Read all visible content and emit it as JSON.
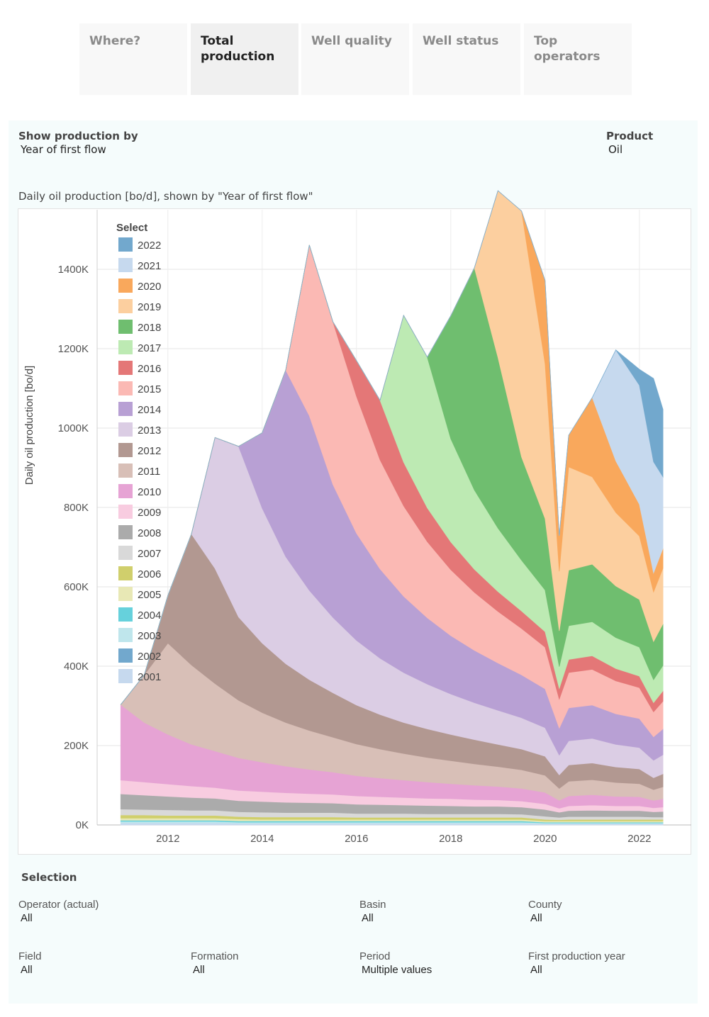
{
  "tabs": [
    {
      "label": "Where?",
      "active": false
    },
    {
      "label": "Total production",
      "active": true
    },
    {
      "label": "Well quality",
      "active": false
    },
    {
      "label": "Well status",
      "active": false
    },
    {
      "label": "Top operators",
      "active": false
    }
  ],
  "controls": {
    "show_by_label": "Show production by",
    "show_by_value": "Year of first flow",
    "product_label": "Product",
    "product_value": "Oil"
  },
  "chart_title": "Daily oil production [bo/d], shown by \"Year of first flow\"",
  "legend_title": "Select",
  "selection": {
    "title": "Selection",
    "filters": [
      {
        "label": "Operator (actual)",
        "value": "All"
      },
      {
        "label": "Basin",
        "value": "All"
      },
      {
        "label": "County",
        "value": "All"
      },
      {
        "label": "Field",
        "value": "All"
      },
      {
        "label": "Formation",
        "value": "All"
      },
      {
        "label": "Period",
        "value": "Multiple values"
      },
      {
        "label": "First production year",
        "value": "All"
      }
    ]
  },
  "chart_data": {
    "type": "area",
    "stacked": true,
    "ylabel": "Daily oil production [bo/d]",
    "xlabel": "",
    "ylim": [
      0,
      1550000
    ],
    "xlim": [
      2010.5,
      2023.1
    ],
    "y_ticks": [
      "0K",
      "200K",
      "400K",
      "600K",
      "800K",
      "1000K",
      "1200K",
      "1400K"
    ],
    "x_ticks": [
      "2012",
      "2014",
      "2016",
      "2018",
      "2020",
      "2022"
    ],
    "legend_placement": "top-left",
    "grid": true,
    "x": [
      2011.0,
      2011.5,
      2012.0,
      2012.5,
      2013.0,
      2013.5,
      2014.0,
      2014.5,
      2015.0,
      2015.5,
      2016.0,
      2016.5,
      2017.0,
      2017.5,
      2018.0,
      2018.5,
      2019.0,
      2019.5,
      2020.0,
      2020.3,
      2020.5,
      2021.0,
      2021.5,
      2022.0,
      2022.3,
      2022.5
    ],
    "series": [
      {
        "name": "2001",
        "color": "#c6d9ee",
        "values": [
          5000,
          5000,
          5000,
          5000,
          5000,
          4000,
          4000,
          4000,
          4000,
          4000,
          4000,
          4000,
          4000,
          4000,
          4000,
          4000,
          4000,
          4000,
          3000,
          3000,
          3000,
          3000,
          3000,
          3000,
          3000,
          3000
        ]
      },
      {
        "name": "2002",
        "color": "#72a8cd",
        "values": [
          0,
          0,
          0,
          0,
          0,
          0,
          0,
          0,
          0,
          0,
          0,
          0,
          0,
          0,
          0,
          0,
          0,
          0,
          0,
          0,
          0,
          0,
          0,
          0,
          0,
          0
        ]
      },
      {
        "name": "2003",
        "color": "#bfe6ec",
        "values": [
          4000,
          4000,
          4000,
          4000,
          4000,
          3000,
          3000,
          3000,
          3000,
          3000,
          3000,
          3000,
          3000,
          3000,
          3000,
          3000,
          3000,
          3000,
          2000,
          2000,
          2000,
          2000,
          2000,
          2000,
          2000,
          2000
        ]
      },
      {
        "name": "2004",
        "color": "#66d1dc",
        "values": [
          3000,
          3000,
          3000,
          3000,
          3000,
          3000,
          3000,
          3000,
          3000,
          3000,
          3000,
          3000,
          3000,
          3000,
          3000,
          3000,
          3000,
          3000,
          2000,
          2000,
          2000,
          2000,
          2000,
          2000,
          2000,
          2000
        ]
      },
      {
        "name": "2005",
        "color": "#e8e8b5",
        "values": [
          5000,
          5000,
          5000,
          5000,
          5000,
          5000,
          4000,
          4000,
          4000,
          4000,
          4000,
          4000,
          4000,
          4000,
          4000,
          4000,
          4000,
          4000,
          3000,
          3000,
          3000,
          3000,
          3000,
          3000,
          3000,
          3000
        ]
      },
      {
        "name": "2006",
        "color": "#d0cf6c",
        "values": [
          8000,
          8000,
          7000,
          7000,
          7000,
          6000,
          6000,
          6000,
          6000,
          6000,
          5000,
          5000,
          5000,
          5000,
          5000,
          5000,
          5000,
          5000,
          4000,
          3000,
          4000,
          4000,
          4000,
          4000,
          4000,
          4000
        ]
      },
      {
        "name": "2007",
        "color": "#d9d9d9",
        "values": [
          15000,
          14000,
          14000,
          13000,
          13000,
          12000,
          12000,
          11000,
          11000,
          11000,
          10000,
          10000,
          10000,
          9000,
          9000,
          9000,
          9000,
          8000,
          8000,
          6000,
          7000,
          7000,
          7000,
          7000,
          6000,
          6000
        ]
      },
      {
        "name": "2008",
        "color": "#ababab",
        "values": [
          38000,
          36000,
          34000,
          32000,
          30000,
          28000,
          27000,
          26000,
          25000,
          24000,
          23000,
          22000,
          21000,
          21000,
          20000,
          19000,
          19000,
          18000,
          17000,
          13000,
          15000,
          16000,
          15000,
          15000,
          13000,
          14000
        ]
      },
      {
        "name": "2009",
        "color": "#f8cce0",
        "values": [
          35000,
          33000,
          31000,
          29000,
          27000,
          26000,
          25000,
          24000,
          23000,
          22000,
          21000,
          20000,
          19000,
          18000,
          18000,
          17000,
          16000,
          15000,
          14000,
          10000,
          12000,
          13000,
          12000,
          12000,
          10000,
          11000
        ]
      },
      {
        "name": "2010",
        "color": "#e6a3d4",
        "values": [
          190000,
          150000,
          125000,
          105000,
          92000,
          82000,
          74000,
          67000,
          61000,
          56000,
          51000,
          47000,
          44000,
          41000,
          38000,
          36000,
          34000,
          32000,
          29000,
          20000,
          25000,
          26000,
          24000,
          23000,
          19000,
          21000
        ]
      },
      {
        "name": "2011",
        "color": "#d8bfb7",
        "values": [
          0,
          120000,
          230000,
          200000,
          170000,
          145000,
          125000,
          110000,
          98000,
          88000,
          80000,
          73000,
          67000,
          62000,
          58000,
          54000,
          50000,
          47000,
          43000,
          30000,
          37000,
          38000,
          35000,
          33000,
          27000,
          30000
        ]
      },
      {
        "name": "2012",
        "color": "#b29891",
        "values": [
          0,
          0,
          120000,
          330000,
          290000,
          210000,
          175000,
          148000,
          128000,
          112000,
          98000,
          87000,
          78000,
          72000,
          66000,
          61000,
          56000,
          52000,
          48000,
          34000,
          41000,
          42000,
          39000,
          37000,
          30000,
          33000
        ]
      },
      {
        "name": "2013",
        "color": "#dbcde4",
        "values": [
          0,
          0,
          0,
          0,
          330000,
          430000,
          340000,
          270000,
          225000,
          190000,
          163000,
          142000,
          126000,
          113000,
          102000,
          93000,
          86000,
          79000,
          72000,
          50000,
          61000,
          62000,
          57000,
          54000,
          44000,
          48000
        ]
      },
      {
        "name": "2014",
        "color": "#b8a0d4",
        "values": [
          0,
          0,
          0,
          0,
          0,
          0,
          190000,
          470000,
          440000,
          335000,
          270000,
          225000,
          192000,
          167000,
          147000,
          132000,
          119000,
          108000,
          98000,
          68000,
          83000,
          84000,
          77000,
          73000,
          59000,
          65000
        ]
      },
      {
        "name": "2015",
        "color": "#fbb9b4",
        "values": [
          0,
          0,
          0,
          0,
          0,
          0,
          0,
          0,
          430000,
          410000,
          345000,
          275000,
          228000,
          192000,
          166000,
          146000,
          130000,
          117000,
          105000,
          73000,
          89000,
          90000,
          83000,
          78000,
          63000,
          70000
        ]
      },
      {
        "name": "2016",
        "color": "#e47777",
        "values": [
          0,
          0,
          0,
          0,
          0,
          0,
          0,
          0,
          0,
          0,
          90000,
          150000,
          110000,
          85000,
          70000,
          58000,
          50000,
          44000,
          39000,
          27000,
          33000,
          34000,
          31000,
          29000,
          23000,
          26000
        ]
      },
      {
        "name": "2017",
        "color": "#bdeab3",
        "values": [
          0,
          0,
          0,
          0,
          0,
          0,
          0,
          0,
          0,
          0,
          0,
          0,
          370000,
          380000,
          260000,
          200000,
          160000,
          128000,
          105000,
          55000,
          85000,
          86000,
          78000,
          73000,
          58000,
          64000
        ]
      },
      {
        "name": "2018",
        "color": "#6fbe6f",
        "values": [
          0,
          0,
          0,
          0,
          0,
          0,
          0,
          0,
          0,
          0,
          0,
          0,
          0,
          0,
          310000,
          560000,
          430000,
          260000,
          180000,
          90000,
          140000,
          145000,
          130000,
          120000,
          96000,
          105000
        ]
      },
      {
        "name": "2019",
        "color": "#fccf9f",
        "values": [
          0,
          0,
          0,
          0,
          0,
          0,
          0,
          0,
          0,
          0,
          0,
          0,
          0,
          0,
          0,
          0,
          420000,
          620000,
          390000,
          150000,
          260000,
          220000,
          185000,
          160000,
          125000,
          140000
        ]
      },
      {
        "name": "2020",
        "color": "#f9a85c",
        "values": [
          0,
          0,
          0,
          0,
          0,
          0,
          0,
          0,
          0,
          0,
          0,
          0,
          0,
          0,
          0,
          0,
          0,
          0,
          210000,
          90000,
          80000,
          200000,
          130000,
          80000,
          48000,
          50000
        ]
      },
      {
        "name": "2021",
        "color": "#c6d9ee",
        "values": [
          0,
          0,
          0,
          0,
          0,
          0,
          0,
          0,
          0,
          0,
          0,
          0,
          0,
          0,
          0,
          0,
          0,
          0,
          0,
          0,
          0,
          0,
          280000,
          300000,
          280000,
          180000
        ]
      },
      {
        "name": "2022",
        "color": "#72a8cd",
        "values": [
          0,
          0,
          0,
          0,
          0,
          0,
          0,
          0,
          0,
          0,
          0,
          0,
          0,
          0,
          0,
          0,
          0,
          0,
          0,
          0,
          0,
          0,
          0,
          40000,
          210000,
          170000
        ]
      }
    ]
  }
}
